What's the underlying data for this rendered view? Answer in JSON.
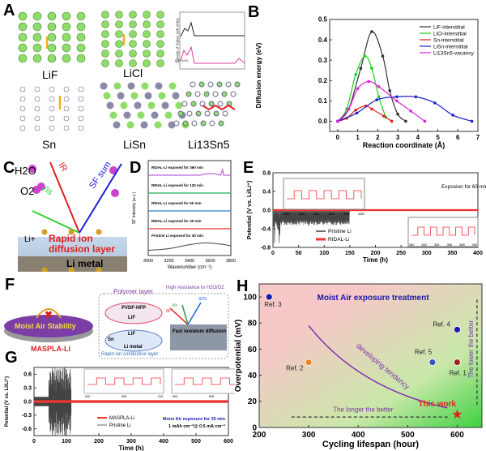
{
  "panels": {
    "A": "A",
    "B": "B",
    "C": "C",
    "D": "D",
    "E": "E",
    "F": "F",
    "G": "G",
    "H": "H"
  },
  "panel_a": {
    "labels": [
      "LiF",
      "LiCl",
      "Sn",
      "LiSn",
      "Li13Sn5"
    ],
    "dos_ylabel": "Density of States (arb.units)",
    "dos_xlabel": "E-Ef (eV)"
  },
  "panel_c": {
    "h2o": "H2O",
    "o2": "O2",
    "ir": "IR",
    "vis": "Vis",
    "sf": "SF sum",
    "li_ion": "Li+",
    "layer": "Rapid ion diffusion layer",
    "metal": "Li metal"
  },
  "panel_f": {
    "stability": "Moist Air Stability",
    "name": "MASPLA-Li",
    "polymer_layer": "Polymer layer",
    "pvdf": "PVDF-HFP",
    "lif": "LiF",
    "lif2": "LiF",
    "sn": "Sn",
    "li_metal": "Li metal",
    "rapid": "Rapid ion conductive layer",
    "resistance": "High resistance to H2O/O2",
    "vis": "Vis",
    "ir": "IR",
    "sfg": "SFG",
    "fast": "Fast ion/atom diffusion"
  },
  "colors": {
    "lif": "#333333",
    "licl": "#22cc22",
    "sn": "#dd2222",
    "lisn": "#2222cc",
    "li13sn5": "#dd22dd",
    "ridal": "#ee3333",
    "pristine": "#444444",
    "accent_red": "#e02020",
    "accent_blue": "#1a1aaa"
  },
  "chart_data": [
    {
      "id": "B",
      "type": "line",
      "xlabel": "Reaction  coordinate (Å)",
      "ylabel": "Diffusion energy (eV)",
      "xlim": [
        -0.4,
        7
      ],
      "ylim": [
        -0.05,
        0.5
      ],
      "xticks": [
        0,
        1,
        2,
        3,
        4,
        5,
        6,
        7
      ],
      "yticks": [
        0.0,
        0.1,
        0.2,
        0.3,
        0.4,
        0.5
      ],
      "legend": "top-right",
      "series": [
        {
          "name": "LiF-interstitial",
          "x": [
            0,
            0.55,
            1.15,
            1.7,
            2.25,
            2.6,
            3.0,
            3.4
          ],
          "y": [
            0,
            0.06,
            0.26,
            0.44,
            0.32,
            0.15,
            0.035,
            0
          ]
        },
        {
          "name": "LiCl-interstitial",
          "x": [
            0,
            0.45,
            0.9,
            1.35,
            1.7,
            2.05,
            2.4
          ],
          "y": [
            0,
            0.06,
            0.23,
            0.32,
            0.26,
            0.12,
            0.02
          ]
        },
        {
          "name": "Sn-interstitial",
          "x": [
            0,
            0.45,
            0.9,
            1.4,
            1.7,
            2.3,
            2.7
          ],
          "y": [
            0,
            0.015,
            0.055,
            0.075,
            0.06,
            0.025,
            0
          ]
        },
        {
          "name": "LiSn-interstitial",
          "x": [
            0,
            0.95,
            1.95,
            2.95,
            3.9,
            4.85,
            5.75,
            6.7
          ],
          "y": [
            0,
            0.04,
            0.105,
            0.12,
            0.12,
            0.09,
            0.03,
            0
          ]
        },
        {
          "name": "Li13Sn5-vacancy",
          "x": [
            0,
            0.55,
            1.0,
            1.55,
            2.05,
            2.95,
            3.65,
            4.35
          ],
          "y": [
            0,
            0.06,
            0.16,
            0.195,
            0.17,
            0.1,
            0.05,
            0
          ]
        }
      ]
    },
    {
      "id": "D",
      "type": "line",
      "xlabel": "Wavenumber (cm⁻¹)",
      "ylabel": "SF Intensity (a.u.)",
      "xlim": [
        3000,
        3800
      ],
      "xticks": [
        3000,
        3200,
        3400,
        3600,
        3800
      ],
      "series": [
        {
          "name": "RIDAL-Li exposed for 360 min",
          "color": "#bb66dd"
        },
        {
          "name": "RIDAL-Li exposed for 120 min",
          "color": "#22aa55"
        },
        {
          "name": "RIDAL-Li exposed for 60 min",
          "color": "#2a7fd0"
        },
        {
          "name": "RIDAL-Li exposed for 30 min",
          "color": "#ee3333"
        },
        {
          "name": "Pristine Li exposed for 30 min",
          "color": "#444444",
          "x": [
            3000,
            3200,
            3400,
            3550,
            3700,
            3800
          ],
          "y": [
            0.1,
            0.25,
            0.6,
            0.75,
            0.65,
            0.5
          ]
        }
      ]
    },
    {
      "id": "E",
      "type": "line",
      "xlabel": "Time (h)",
      "ylabel": "Potential (V vs. Li/Li⁺)",
      "xlim": [
        0,
        400
      ],
      "ylim": [
        -0.8,
        0.8
      ],
      "xticks": [
        0,
        50,
        100,
        150,
        200,
        250,
        300,
        350,
        400
      ],
      "yticks": [
        -0.8,
        -0.4,
        0.0,
        0.4,
        0.8
      ],
      "annotation": "Exposion for 60 min",
      "legend": "bottom-left",
      "series": [
        {
          "name": "Pristine Li",
          "fail_h": 150
        },
        {
          "name": "RIDAL-Li",
          "amplitude": 0.02
        }
      ],
      "insets": [
        {
          "xlim": [
            200,
            210
          ],
          "xticks": [
            200,
            202,
            204,
            206,
            208,
            210
          ],
          "yticks": [
            -0.1,
            0.0,
            0.1
          ]
        },
        {
          "xlim": [
            380,
            390
          ],
          "xticks": [
            380,
            382,
            384,
            386,
            388,
            390
          ],
          "yticks": [
            -0.1,
            0.0,
            0.1
          ]
        }
      ]
    },
    {
      "id": "G",
      "type": "line",
      "xlabel": "Time (h)",
      "ylabel": "Potential (V vs. Li/Li⁺)",
      "xlim": [
        0,
        600
      ],
      "ylim": [
        -0.75,
        0.75
      ],
      "xticks": [
        0,
        100,
        200,
        300,
        400,
        500,
        600
      ],
      "yticks": [
        -0.6,
        -0.3,
        0.0,
        0.3,
        0.6
      ],
      "annotation": "Moist Air exposure for 30 min",
      "annotation2": "1 mAh cm⁻²@ 0.5 mA cm⁻²",
      "legend": "bottom-center",
      "series": [
        {
          "name": "MASPLA-Li",
          "amplitude": 0.015
        },
        {
          "name": "Pristine Li",
          "fail_h": 115
        }
      ],
      "insets": [
        {
          "xlim": [
            200,
            210
          ],
          "xticks": [
            200,
            205,
            210
          ],
          "yticks": [
            0.04,
            0.02,
            0.0,
            -0.02,
            -0.04
          ]
        },
        {
          "xlim": [
            500,
            510
          ],
          "xticks": [
            500,
            505,
            510
          ],
          "yticks": [
            0.04,
            0.02,
            0.0,
            -0.02,
            -0.04
          ]
        }
      ]
    },
    {
      "id": "H",
      "type": "scatter",
      "xlabel": "Cycling lifespan (hour)",
      "ylabel": "Overpotential (mV)",
      "xlim": [
        200,
        650
      ],
      "ylim": [
        0,
        110
      ],
      "xticks": [
        200,
        300,
        400,
        500,
        600
      ],
      "yticks": [
        0,
        20,
        40,
        60,
        80,
        100
      ],
      "title": "Moist Air exposure treatment",
      "trend_label": "developing tendency",
      "x_arrow": "The longer the better",
      "y_arrow": "The lower the better",
      "points": [
        {
          "name": "Ref. 3",
          "x": 220,
          "y": 100,
          "color": "#1a1aaa"
        },
        {
          "name": "Ref. 2",
          "x": 300,
          "y": 50,
          "color": "#f08020"
        },
        {
          "name": "Ref. 4",
          "x": 600,
          "y": 75,
          "color": "#1a1aaa"
        },
        {
          "name": "Ref. 5",
          "x": 550,
          "y": 50,
          "color": "#3355cc"
        },
        {
          "name": "Ref. 1",
          "x": 600,
          "y": 50,
          "color": "#a02020"
        },
        {
          "name": "This work",
          "x": 600,
          "y": 10,
          "color": "#e02020"
        }
      ]
    }
  ]
}
